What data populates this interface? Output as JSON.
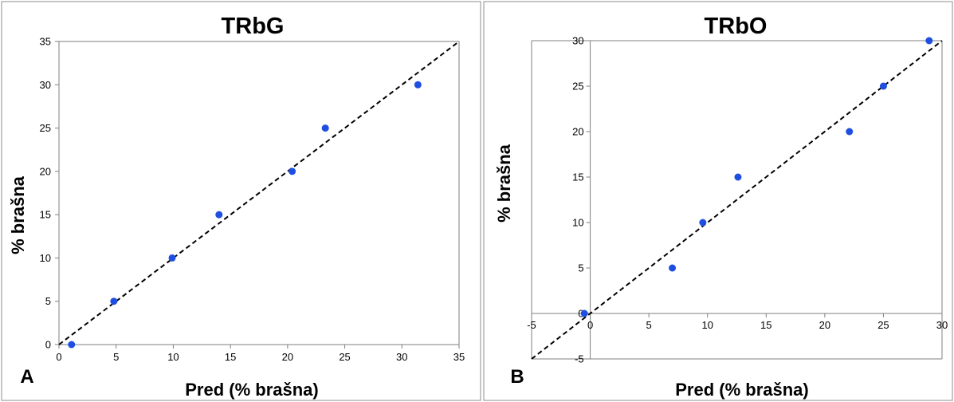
{
  "chart_data": [
    {
      "type": "scatter",
      "panel_letter": "A",
      "title": "TRbG",
      "xlabel": "Pred (% brašna)",
      "ylabel": "% brašna",
      "xlim": [
        0,
        35
      ],
      "ylim": [
        0,
        35
      ],
      "xticks": [
        0,
        5,
        10,
        15,
        20,
        25,
        30,
        35
      ],
      "yticks": [
        0,
        5,
        10,
        15,
        20,
        25,
        30,
        35
      ],
      "point_color": "#1f4fe0",
      "points": [
        {
          "x": 1.1,
          "y": 0
        },
        {
          "x": 4.8,
          "y": 5
        },
        {
          "x": 9.9,
          "y": 10
        },
        {
          "x": 14.0,
          "y": 15
        },
        {
          "x": 20.4,
          "y": 20
        },
        {
          "x": 23.3,
          "y": 25
        },
        {
          "x": 31.4,
          "y": 30
        }
      ],
      "reference_line": {
        "style": "dashed",
        "from": [
          0,
          0
        ],
        "to": [
          35,
          35
        ]
      }
    },
    {
      "type": "scatter",
      "panel_letter": "B",
      "title": "TRbO",
      "xlabel": "Pred (% brašna)",
      "ylabel": "% brašna",
      "xlim": [
        -5,
        30
      ],
      "ylim": [
        -5,
        30
      ],
      "xticks": [
        -5,
        0,
        5,
        10,
        15,
        20,
        25,
        30
      ],
      "yticks": [
        -5,
        0,
        5,
        10,
        15,
        20,
        25,
        30
      ],
      "point_color": "#1f4fe0",
      "points": [
        {
          "x": -0.5,
          "y": 0
        },
        {
          "x": 7.0,
          "y": 5
        },
        {
          "x": 9.6,
          "y": 10
        },
        {
          "x": 12.6,
          "y": 15
        },
        {
          "x": 22.1,
          "y": 20
        },
        {
          "x": 25.0,
          "y": 25
        },
        {
          "x": 28.9,
          "y": 30
        }
      ],
      "reference_line": {
        "style": "dashed",
        "from": [
          -5,
          -5
        ],
        "to": [
          30,
          30
        ]
      }
    }
  ]
}
